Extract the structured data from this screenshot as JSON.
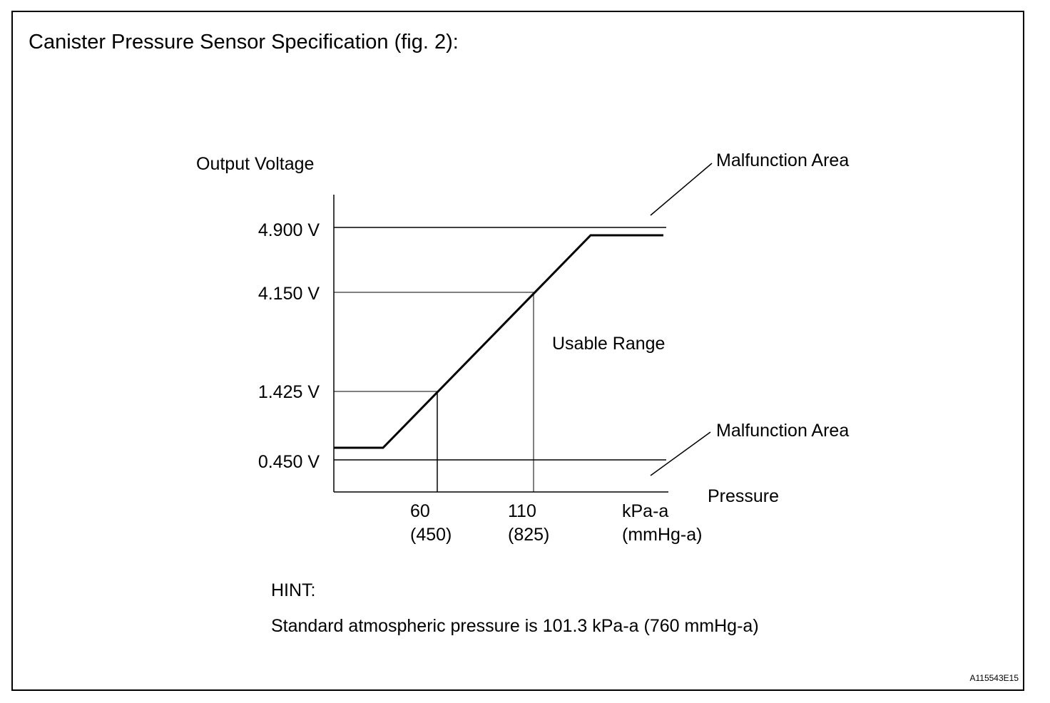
{
  "title": "Canister Pressure Sensor Specification (fig. 2):",
  "y_axis_label": "Output Voltage",
  "x_axis_label": "Pressure",
  "y_ticks": [
    {
      "voltage": 4.9,
      "label": "4.900 V"
    },
    {
      "voltage": 4.15,
      "label": "4.150 V"
    },
    {
      "voltage": 1.425,
      "label": "1.425 V"
    },
    {
      "voltage": 0.45,
      "label": "0.450 V"
    }
  ],
  "x_ticks": [
    {
      "kpa": 60,
      "label": "60",
      "sublabel": "(450)"
    },
    {
      "kpa": 110,
      "label": "110",
      "sublabel": "(825)"
    }
  ],
  "x_unit": {
    "label": "kPa-a",
    "sublabel": "(mmHg-a)"
  },
  "annotations": {
    "malfunction_upper": "Malfunction Area",
    "malfunction_lower": "Malfunction Area",
    "usable_range": "Usable Range"
  },
  "hint": {
    "heading": "HINT:",
    "text": "Standard atmospheric pressure is 101.3 kPa-a (760 mmHg-a)"
  },
  "figure_code": "A115543E15"
}
